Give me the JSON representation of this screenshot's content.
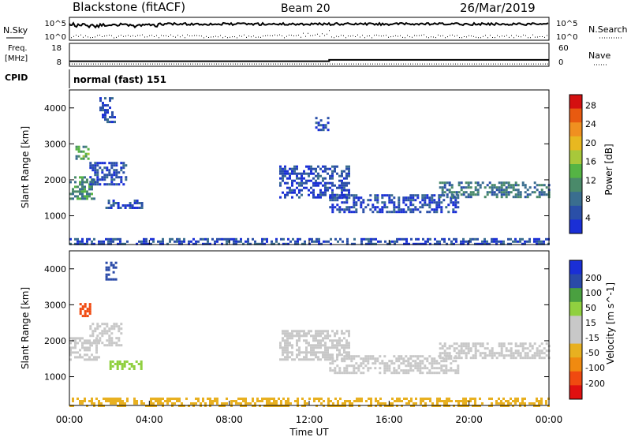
{
  "header": {
    "station": "Blackstone (fitACF)",
    "beam": "Beam 20",
    "date": "26/Mar/2019"
  },
  "noise_panel": {
    "left_label": "N.Sky",
    "right_label": "N.Search",
    "left_ticks": [
      "10^5",
      "10^0"
    ],
    "right_ticks": [
      "10^5",
      "10^0"
    ]
  },
  "freq_panel": {
    "left_label_1": "Freq.",
    "left_label_2": "[MHz]",
    "right_label": "Nave",
    "left_ticks": [
      "18",
      "8"
    ],
    "right_ticks": [
      "60",
      "0"
    ],
    "freq_mhz": [
      {
        "t": 0,
        "v": 10.2
      },
      {
        "t": 13,
        "v": 10.2
      },
      {
        "t": 13,
        "v": 10.8
      },
      {
        "t": 24,
        "v": 10.8
      }
    ],
    "nave": [
      {
        "t": 0,
        "v": 6
      },
      {
        "t": 24,
        "v": 6
      }
    ]
  },
  "cpid": {
    "label": "CPID",
    "value": "normal (fast) 151"
  },
  "colors": {
    "power_bar": [
      "#1a2fd6",
      "#2a4fa8",
      "#3a6e8f",
      "#4a8a6a",
      "#55b444",
      "#a8c83a",
      "#e8b820",
      "#f09020",
      "#e85a10",
      "#d41010"
    ],
    "velocity_bar": [
      "#e01010",
      "#f04a10",
      "#f08a10",
      "#e8b020",
      "#c8c8c8",
      "#c8c8c8",
      "#90d040",
      "#4aa040",
      "#2a4aa8",
      "#1a2fd6"
    ]
  },
  "chart_data": [
    {
      "type": "heatmap",
      "name": "power",
      "ylabel": "Slant Range [km]",
      "ylim": [
        200,
        4500
      ],
      "y_ticks": [
        "1000",
        "2000",
        "3000",
        "4000"
      ],
      "colorbar_label": "Power [dB]",
      "colorbar_ticks": [
        "4",
        "8",
        "12",
        "16",
        "20",
        "24",
        "28"
      ],
      "xlim_hours": [
        0,
        24
      ],
      "regions": [
        {
          "t0": 0.0,
          "t1": 1.2,
          "r0": 1450,
          "r1": 2100,
          "value": 12
        },
        {
          "t0": 0.3,
          "t1": 1.0,
          "r0": 2600,
          "r1": 2950,
          "value": 14
        },
        {
          "t0": 1.0,
          "t1": 2.8,
          "r0": 1900,
          "r1": 2500,
          "value": 6
        },
        {
          "t0": 1.5,
          "t1": 2.3,
          "r0": 3600,
          "r1": 4300,
          "value": 6
        },
        {
          "t0": 1.8,
          "t1": 3.8,
          "r0": 1200,
          "r1": 1450,
          "value": 6
        },
        {
          "t0": 10.5,
          "t1": 14.0,
          "r0": 1500,
          "r1": 2400,
          "value": 6
        },
        {
          "t0": 12.3,
          "t1": 13.0,
          "r0": 3400,
          "r1": 3750,
          "value": 6
        },
        {
          "t0": 13.0,
          "t1": 19.5,
          "r0": 1100,
          "r1": 1600,
          "value": 6
        },
        {
          "t0": 18.5,
          "t1": 24.0,
          "r0": 1500,
          "r1": 1950,
          "value": 10
        },
        {
          "t0": 0.0,
          "t1": 24.0,
          "r0": 220,
          "r1": 380,
          "value": 6
        }
      ]
    },
    {
      "type": "heatmap",
      "name": "velocity",
      "ylabel": "Slant Range [km]",
      "ylim": [
        200,
        4500
      ],
      "y_ticks": [
        "1000",
        "2000",
        "3000",
        "4000"
      ],
      "colorbar_label": "Velocity [m s^-1]",
      "colorbar_ticks": [
        "-200",
        "-100",
        "-50",
        "-15",
        "15",
        "50",
        "100",
        "200"
      ],
      "xlabel": "Time UT",
      "x_ticks": [
        "00:00",
        "04:00",
        "08:00",
        "12:00",
        "16:00",
        "20:00",
        "00:00"
      ],
      "xlim_hours": [
        0,
        24
      ],
      "regions": [
        {
          "t0": 0.0,
          "t1": 1.5,
          "r0": 1450,
          "r1": 2100,
          "value": 0
        },
        {
          "t0": 0.5,
          "t1": 1.0,
          "r0": 2700,
          "r1": 3050,
          "value": -180
        },
        {
          "t0": 1.0,
          "t1": 2.6,
          "r0": 1900,
          "r1": 2500,
          "value": 0
        },
        {
          "t0": 1.8,
          "t1": 2.3,
          "r0": 3700,
          "r1": 4200,
          "value": 120
        },
        {
          "t0": 2.0,
          "t1": 3.6,
          "r0": 1200,
          "r1": 1450,
          "value": 30
        },
        {
          "t0": 10.5,
          "t1": 14.0,
          "r0": 1500,
          "r1": 2300,
          "value": 0
        },
        {
          "t0": 13.0,
          "t1": 19.5,
          "r0": 1100,
          "r1": 1600,
          "value": 0
        },
        {
          "t0": 18.5,
          "t1": 24.0,
          "r0": 1500,
          "r1": 1950,
          "value": 0
        },
        {
          "t0": 0.0,
          "t1": 24.0,
          "r0": 220,
          "r1": 420,
          "value": -30
        }
      ]
    }
  ]
}
